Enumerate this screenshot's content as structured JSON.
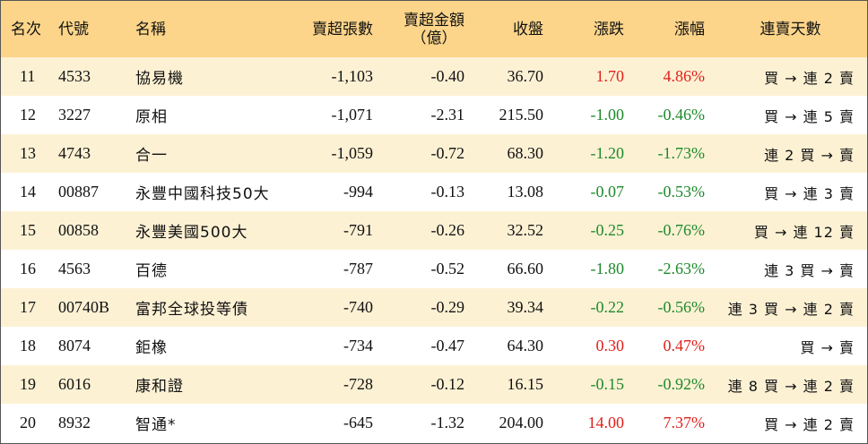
{
  "colors": {
    "header_bg": "#fcd58a",
    "alt_row_bg": "#fdf1d4",
    "up": "#e0201b",
    "down": "#1c8a2a"
  },
  "headers": {
    "rank": "名次",
    "code": "代號",
    "name": "名稱",
    "net_sell_volume": "賣超張數",
    "net_sell_amount_line1": "賣超金額",
    "net_sell_amount_line2": "（億）",
    "close": "收盤",
    "change": "漲跌",
    "change_pct": "漲幅",
    "streak": "連賣天數"
  },
  "rows": [
    {
      "rank": "11",
      "code": "4533",
      "name": "協易機",
      "volume": "-1,103",
      "amount": "-0.40",
      "close": "36.70",
      "change": "1.70",
      "pct": "4.86%",
      "dir": "up",
      "streak": "買 → 連 2 賣"
    },
    {
      "rank": "12",
      "code": "3227",
      "name": "原相",
      "volume": "-1,071",
      "amount": "-2.31",
      "close": "215.50",
      "change": "-1.00",
      "pct": "-0.46%",
      "dir": "down",
      "streak": "買 → 連 5 賣"
    },
    {
      "rank": "13",
      "code": "4743",
      "name": "合一",
      "volume": "-1,059",
      "amount": "-0.72",
      "close": "68.30",
      "change": "-1.20",
      "pct": "-1.73%",
      "dir": "down",
      "streak": "連 2 買 → 賣"
    },
    {
      "rank": "14",
      "code": "00887",
      "name": "永豐中國科技50大",
      "volume": "-994",
      "amount": "-0.13",
      "close": "13.08",
      "change": "-0.07",
      "pct": "-0.53%",
      "dir": "down",
      "streak": "買 → 連 3 賣"
    },
    {
      "rank": "15",
      "code": "00858",
      "name": "永豐美國500大",
      "volume": "-791",
      "amount": "-0.26",
      "close": "32.52",
      "change": "-0.25",
      "pct": "-0.76%",
      "dir": "down",
      "streak": "買 → 連 12 賣"
    },
    {
      "rank": "16",
      "code": "4563",
      "name": "百德",
      "volume": "-787",
      "amount": "-0.52",
      "close": "66.60",
      "change": "-1.80",
      "pct": "-2.63%",
      "dir": "down",
      "streak": "連 3 買 → 賣"
    },
    {
      "rank": "17",
      "code": "00740B",
      "name": "富邦全球投等債",
      "volume": "-740",
      "amount": "-0.29",
      "close": "39.34",
      "change": "-0.22",
      "pct": "-0.56%",
      "dir": "down",
      "streak": "連 3 買 → 連 2 賣"
    },
    {
      "rank": "18",
      "code": "8074",
      "name": "鉅橡",
      "volume": "-734",
      "amount": "-0.47",
      "close": "64.30",
      "change": "0.30",
      "pct": "0.47%",
      "dir": "up",
      "streak": "買 → 賣"
    },
    {
      "rank": "19",
      "code": "6016",
      "name": "康和證",
      "volume": "-728",
      "amount": "-0.12",
      "close": "16.15",
      "change": "-0.15",
      "pct": "-0.92%",
      "dir": "down",
      "streak": "連 8 買 → 連 2 賣"
    },
    {
      "rank": "20",
      "code": "8932",
      "name": "智通*",
      "volume": "-645",
      "amount": "-1.32",
      "close": "204.00",
      "change": "14.00",
      "pct": "7.37%",
      "dir": "up",
      "streak": "買 → 連 2 賣"
    }
  ]
}
